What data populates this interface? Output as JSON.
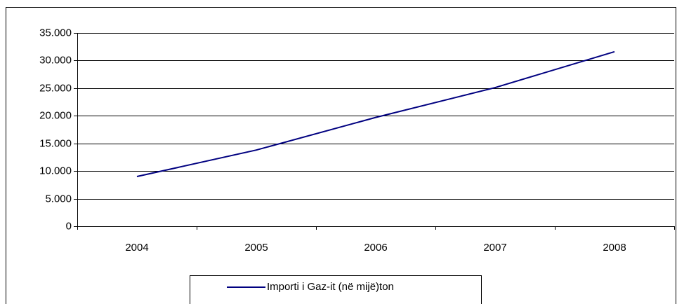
{
  "chart_data": {
    "type": "line",
    "categories": [
      "2004",
      "2005",
      "2006",
      "2007",
      "2008"
    ],
    "series": [
      {
        "name": "Importi i Gaz-it (në mijë)ton",
        "color": "#000080",
        "values": [
          9000,
          13800,
          19700,
          25100,
          31600
        ]
      }
    ],
    "ylim": [
      0,
      35000
    ],
    "yticks": [
      0,
      {
        "value": 5000,
        "label": "5.000"
      },
      {
        "value": 10000,
        "label": "10.000"
      },
      {
        "value": 15000,
        "label": "15.000"
      },
      {
        "value": 20000,
        "label": "20.000"
      },
      {
        "value": 25000,
        "label": "25.000"
      },
      {
        "value": 30000,
        "label": "30.000"
      },
      {
        "value": 35000,
        "label": "35.000"
      }
    ],
    "grid": true,
    "legend": "bottom"
  }
}
